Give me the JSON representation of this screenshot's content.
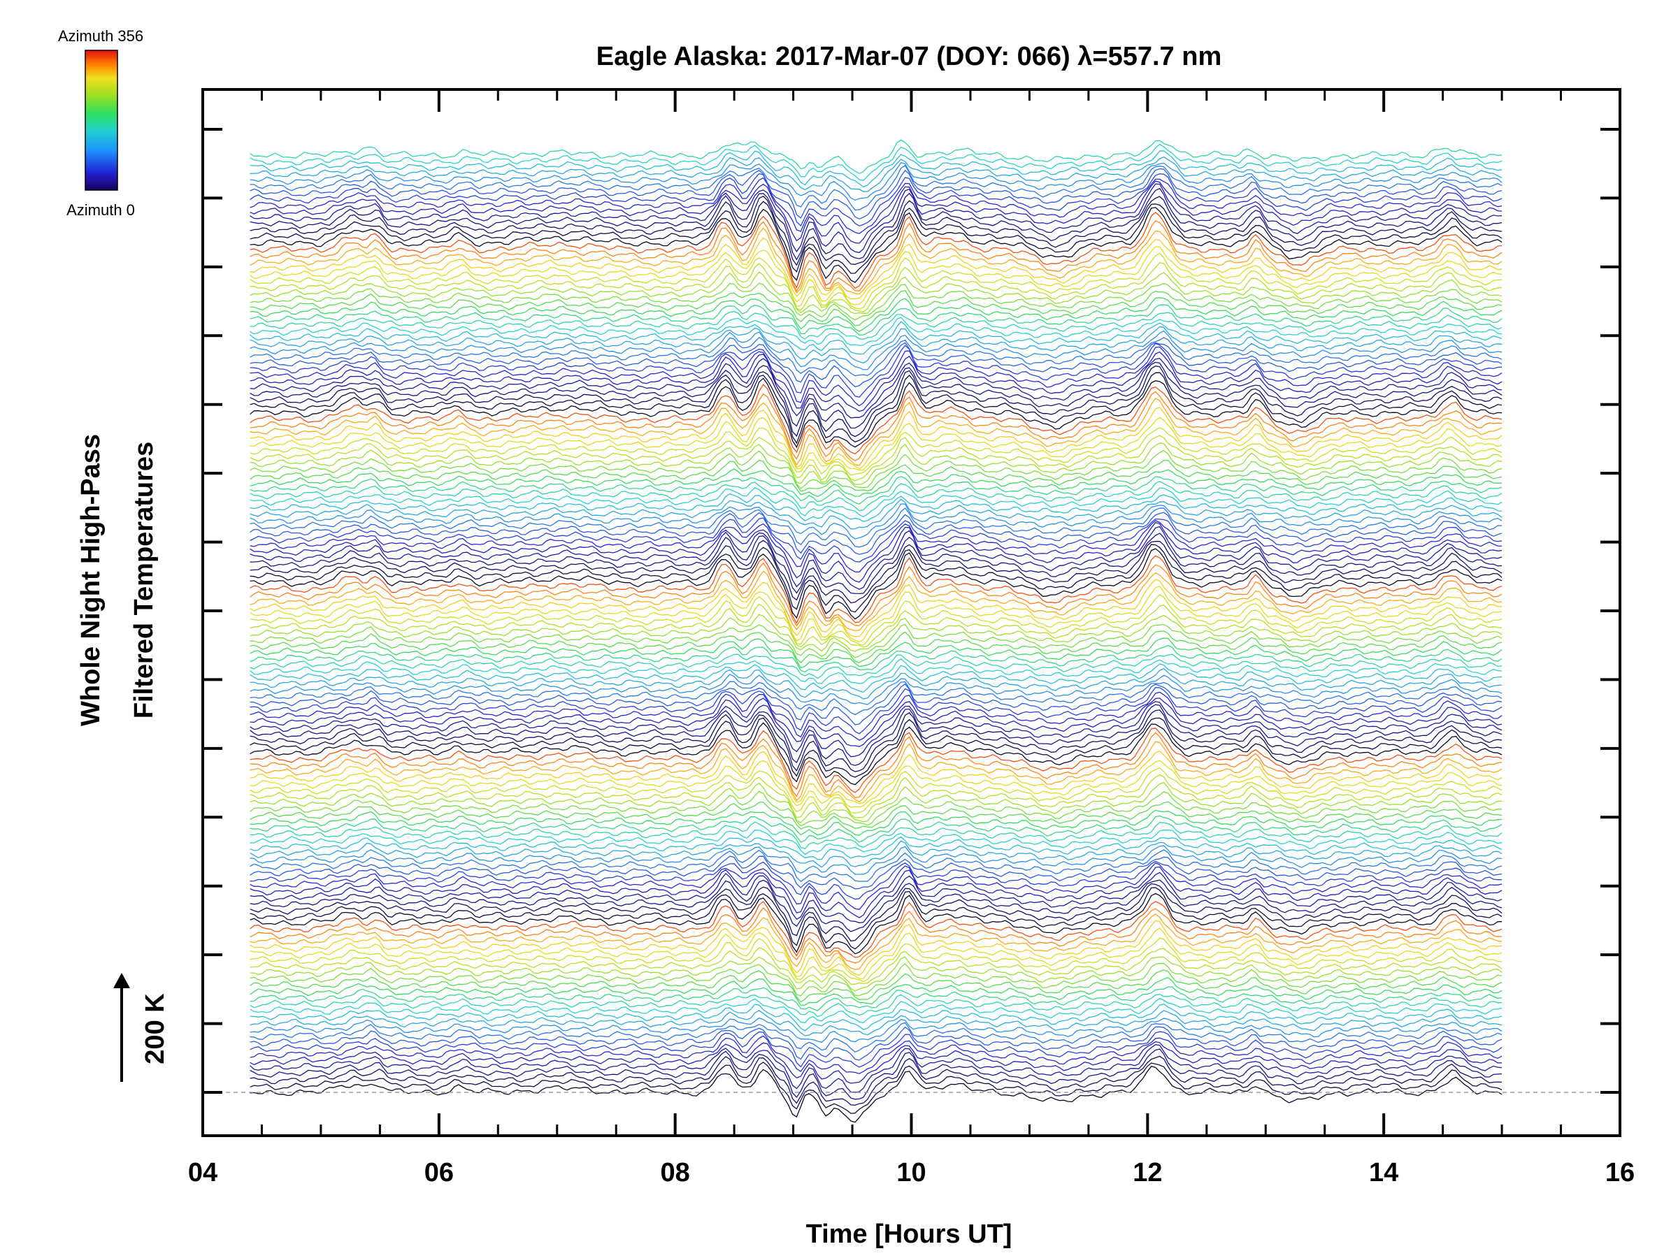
{
  "chart_data": {
    "type": "line",
    "title": "Eagle Alaska: 2017-Mar-07 (DOY: 066) λ=557.7 nm",
    "xlabel": "Time [Hours UT]",
    "ylabel_line1": "Whole Night High-Pass",
    "ylabel_line2": "Filtered Temperatures",
    "scale_label": "200 K",
    "xlim": [
      4,
      16
    ],
    "x_ticks": [
      "04",
      "06",
      "08",
      "10",
      "12",
      "14",
      "16"
    ],
    "x_range_data": [
      4.4,
      15.0
    ],
    "colorbar": {
      "top_label": "Azimuth 356",
      "bottom_label": "Azimuth 0",
      "azimuth_range": [
        0,
        356
      ]
    },
    "baseline": "dashed",
    "series_count": 150,
    "offset_per_series_K": 10,
    "features": [
      {
        "x": 5.3,
        "amp": 0.55,
        "w": 0.16
      },
      {
        "x": 5.45,
        "amp": 0.5,
        "w": 0.07
      },
      {
        "x": 6.2,
        "amp": 0.35,
        "w": 0.1
      },
      {
        "x": 7.0,
        "amp": 0.25,
        "w": 0.35
      },
      {
        "x": 8.45,
        "amp": 1.3,
        "w": 0.1
      },
      {
        "x": 8.72,
        "amp": 1.5,
        "w": 0.1
      },
      {
        "x": 9.05,
        "amp": -1.6,
        "w": 0.07
      },
      {
        "x": 9.25,
        "amp": -1.3,
        "w": 0.08
      },
      {
        "x": 9.55,
        "amp": -1.7,
        "w": 0.16
      },
      {
        "x": 9.95,
        "amp": 1.4,
        "w": 0.08
      },
      {
        "x": 10.35,
        "amp": 0.5,
        "w": 0.2
      },
      {
        "x": 11.2,
        "amp": -0.6,
        "w": 0.25
      },
      {
        "x": 12.1,
        "amp": 1.6,
        "w": 0.13
      },
      {
        "x": 12.9,
        "amp": 0.6,
        "w": 0.07
      },
      {
        "x": 13.3,
        "amp": -0.6,
        "w": 0.2
      },
      {
        "x": 14.55,
        "amp": 0.8,
        "w": 0.12
      }
    ],
    "colors": {
      "baseline": "#9a9a9a",
      "axis": "#000000"
    }
  }
}
